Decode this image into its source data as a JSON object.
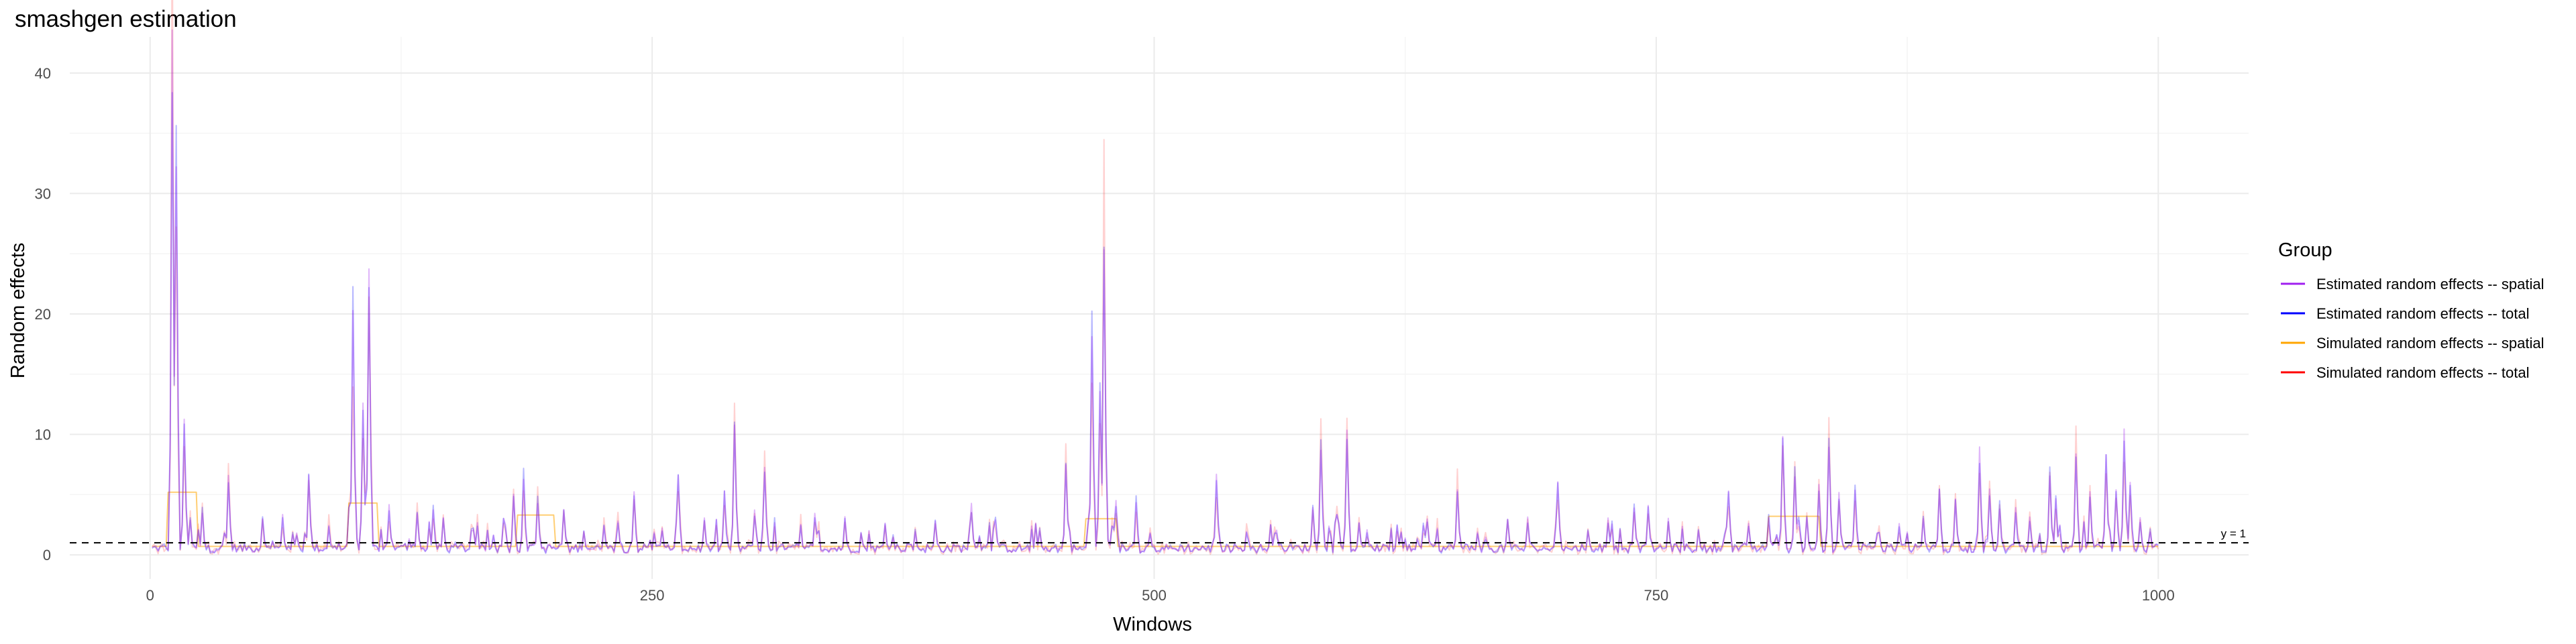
{
  "chart_data": {
    "type": "line",
    "title": "smashgen estimation",
    "xlabel": "Windows",
    "ylabel": "Random effects",
    "xlim": [
      -40,
      1045
    ],
    "ylim": [
      -2,
      43
    ],
    "x_ticks": [
      0,
      250,
      500,
      750,
      1000
    ],
    "y_ticks": [
      0,
      10,
      20,
      30,
      40
    ],
    "grid": true,
    "legend": {
      "title": "Group",
      "placement": "right",
      "entries": [
        {
          "label": "Estimated random effects -- spatial",
          "color": "#a020f0"
        },
        {
          "label": "Estimated random effects -- total",
          "color": "#0000ff"
        },
        {
          "label": "Simulated random effects -- spatial",
          "color": "#ffa500"
        },
        {
          "label": "Simulated random effects -- total",
          "color": "#ff0000"
        }
      ]
    },
    "reference_line": {
      "y": 1,
      "label": "y = 1",
      "style": "dashed"
    },
    "n_windows": 1000,
    "spikes": [
      [
        10,
        41.5
      ],
      [
        12,
        34
      ],
      [
        16,
        11
      ],
      [
        19,
        3
      ],
      [
        25,
        3.5
      ],
      [
        38,
        6.5
      ],
      [
        55,
        3
      ],
      [
        65,
        3.2
      ],
      [
        72,
        1.8
      ],
      [
        78,
        7
      ],
      [
        88,
        2.5
      ],
      [
        98,
        4
      ],
      [
        100,
        20
      ],
      [
        105,
        12
      ],
      [
        108,
        24
      ],
      [
        118,
        4
      ],
      [
        132,
        3.5
      ],
      [
        140,
        3.8
      ],
      [
        145,
        3
      ],
      [
        160,
        2
      ],
      [
        175,
        3
      ],
      [
        180,
        5
      ],
      [
        185,
        6.5
      ],
      [
        192,
        4.5
      ],
      [
        205,
        4
      ],
      [
        215,
        2
      ],
      [
        225,
        2.5
      ],
      [
        232,
        3
      ],
      [
        240,
        5
      ],
      [
        250,
        2
      ],
      [
        262,
        6.8
      ],
      [
        275,
        3
      ],
      [
        285,
        5
      ],
      [
        290,
        10.5
      ],
      [
        300,
        3.5
      ],
      [
        305,
        7
      ],
      [
        330,
        3.5
      ],
      [
        345,
        3
      ],
      [
        365,
        2.5
      ],
      [
        380,
        2
      ],
      [
        390,
        2.8
      ],
      [
        408,
        4
      ],
      [
        420,
        3
      ],
      [
        440,
        2.5
      ],
      [
        455,
        7.5
      ],
      [
        468,
        19
      ],
      [
        472,
        14
      ],
      [
        474,
        26.7
      ],
      [
        480,
        4.5
      ],
      [
        490,
        4.5
      ],
      [
        530,
        7
      ],
      [
        545,
        2
      ],
      [
        560,
        2
      ],
      [
        578,
        4
      ],
      [
        582,
        9
      ],
      [
        590,
        3.5
      ],
      [
        595,
        10.5
      ],
      [
        605,
        2
      ],
      [
        620,
        2.5
      ],
      [
        635,
        3
      ],
      [
        650,
        5.5
      ],
      [
        660,
        2
      ],
      [
        675,
        3
      ],
      [
        685,
        3
      ],
      [
        700,
        6
      ],
      [
        715,
        2
      ],
      [
        725,
        3
      ],
      [
        738,
        4
      ],
      [
        745,
        4
      ],
      [
        755,
        3
      ],
      [
        770,
        2
      ],
      [
        785,
        5.5
      ],
      [
        795,
        2.5
      ],
      [
        805,
        3
      ],
      [
        812,
        9.5
      ],
      [
        818,
        6.5
      ],
      [
        824,
        3
      ],
      [
        830,
        5.5
      ],
      [
        835,
        9.5
      ],
      [
        840,
        5
      ],
      [
        848,
        5.5
      ],
      [
        860,
        2
      ],
      [
        870,
        2.5
      ],
      [
        882,
        3
      ],
      [
        890,
        5.5
      ],
      [
        898,
        4.5
      ],
      [
        910,
        8.5
      ],
      [
        915,
        5.5
      ],
      [
        920,
        4
      ],
      [
        928,
        4
      ],
      [
        935,
        3
      ],
      [
        945,
        6.5
      ],
      [
        948,
        4.5
      ],
      [
        958,
        8.5
      ],
      [
        965,
        5
      ],
      [
        973,
        8
      ],
      [
        978,
        5.5
      ],
      [
        982,
        10.8
      ],
      [
        985,
        6
      ],
      [
        990,
        3
      ],
      [
        995,
        2
      ]
    ],
    "simulated_spatial_steps": [
      [
        8,
        22,
        5.2
      ],
      [
        98,
        112,
        4.3
      ],
      [
        182,
        200,
        3.3
      ],
      [
        465,
        480,
        3
      ],
      [
        805,
        830,
        3.2
      ]
    ]
  }
}
